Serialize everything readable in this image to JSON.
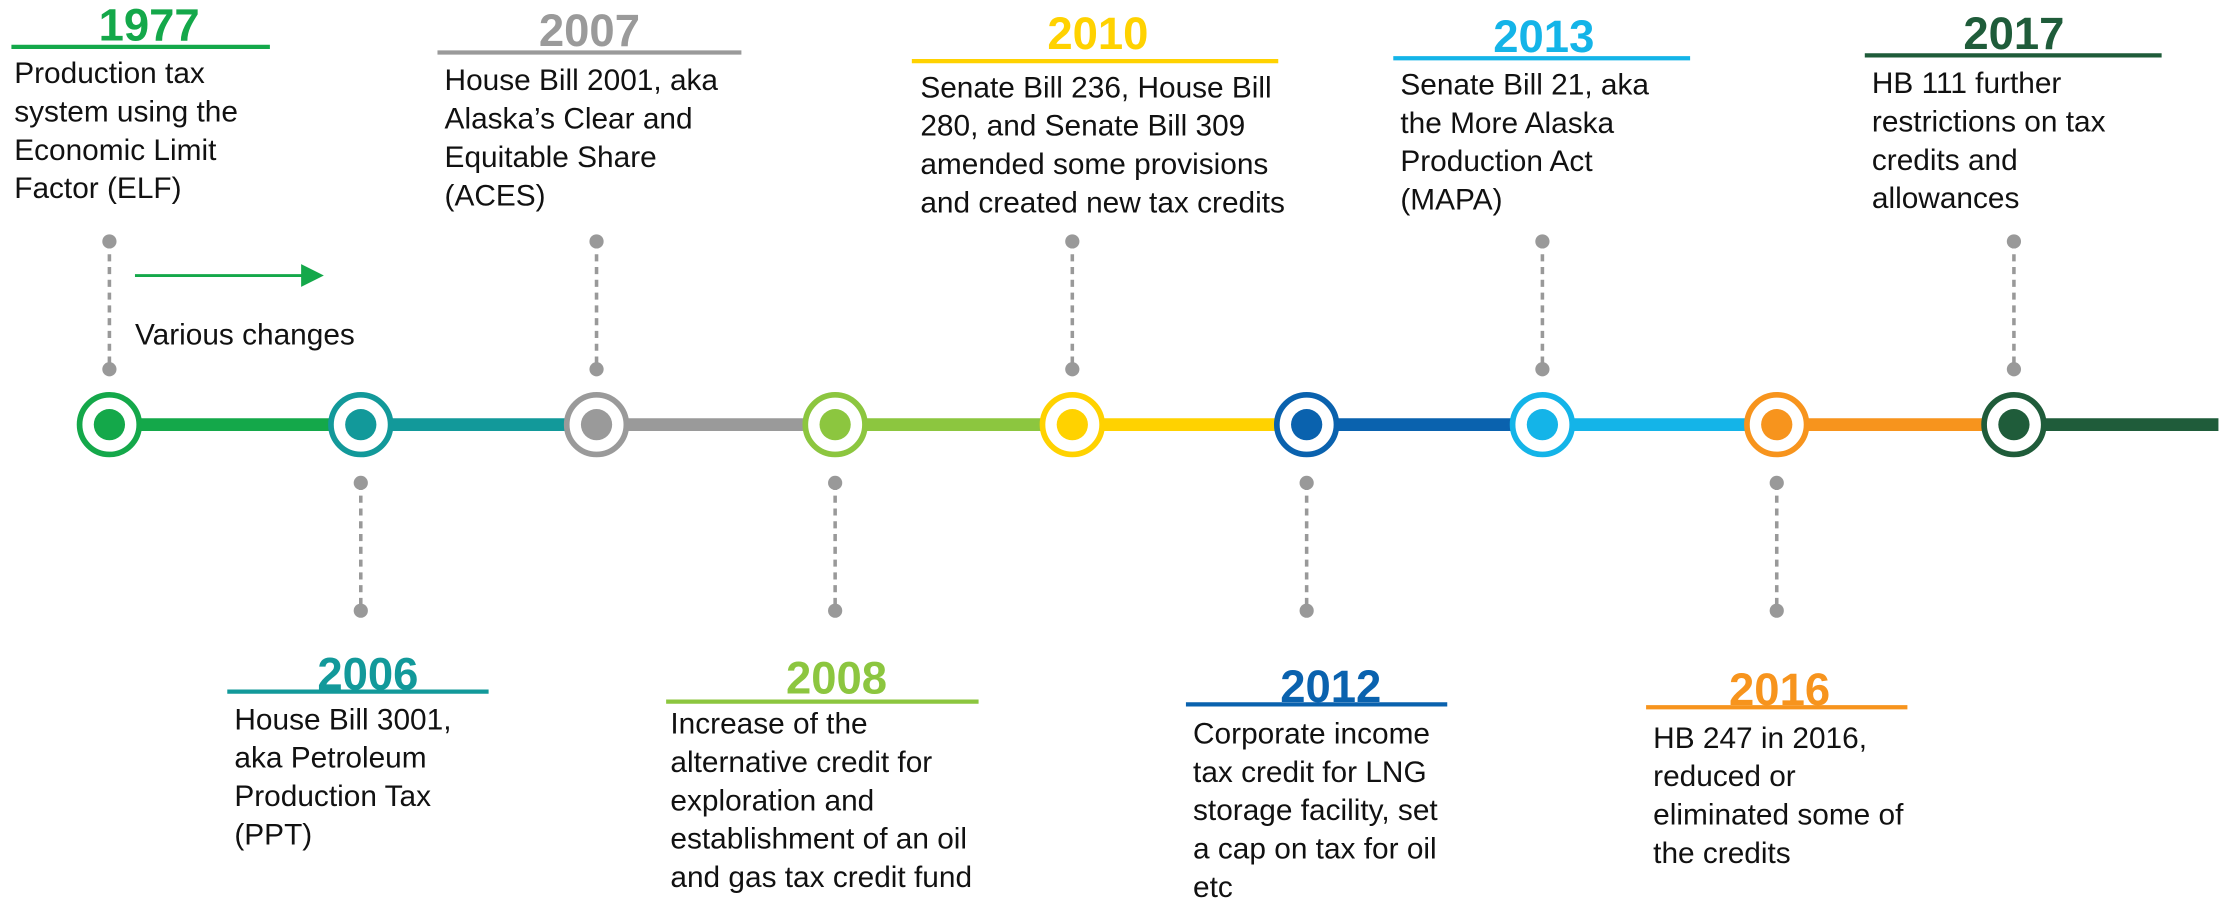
{
  "events": [
    {
      "year": "1977",
      "color": "#14a84a",
      "lines": [
        "Production tax",
        "system using the",
        "Economic Limit",
        "Factor (ELF)"
      ]
    },
    {
      "year": "2006",
      "color": "#12999a",
      "lines": [
        "House Bill 3001,",
        "aka Petroleum",
        "Production Tax",
        "(PPT)"
      ]
    },
    {
      "year": "2007",
      "color": "#9a9a9a",
      "lines": [
        "House Bill 2001, aka",
        "Alaska’s Clear and",
        "Equitable Share",
        "(ACES)"
      ]
    },
    {
      "year": "2008",
      "color": "#8cc63f",
      "lines": [
        "Increase of the",
        "alternative credit for",
        "exploration and",
        "establishment of an oil",
        "and gas tax credit fund"
      ]
    },
    {
      "year": "2010",
      "color": "#ffd200",
      "lines": [
        "Senate Bill 236, House Bill",
        "280, and Senate Bill 309",
        "amended some provisions",
        "and created new tax credits"
      ]
    },
    {
      "year": "2012",
      "color": "#0a62ae",
      "lines": [
        "Corporate income",
        "tax credit for LNG",
        "storage facility, set",
        "a cap on tax for oil",
        "etc"
      ]
    },
    {
      "year": "2013",
      "color": "#14b4e8",
      "lines": [
        "Senate Bill 21, aka",
        "the More Alaska",
        "Production Act",
        "(MAPA)"
      ]
    },
    {
      "year": "2016",
      "color": "#f7941d",
      "lines": [
        "HB 247 in 2016,",
        "reduced or",
        "eliminated some of",
        "the credits"
      ]
    },
    {
      "year": "2017",
      "color": "#1f5c3a",
      "lines": [
        "HB 111 further",
        "restrictions on tax",
        "credits and",
        "allowances"
      ]
    }
  ],
  "annotation": "Various changes"
}
